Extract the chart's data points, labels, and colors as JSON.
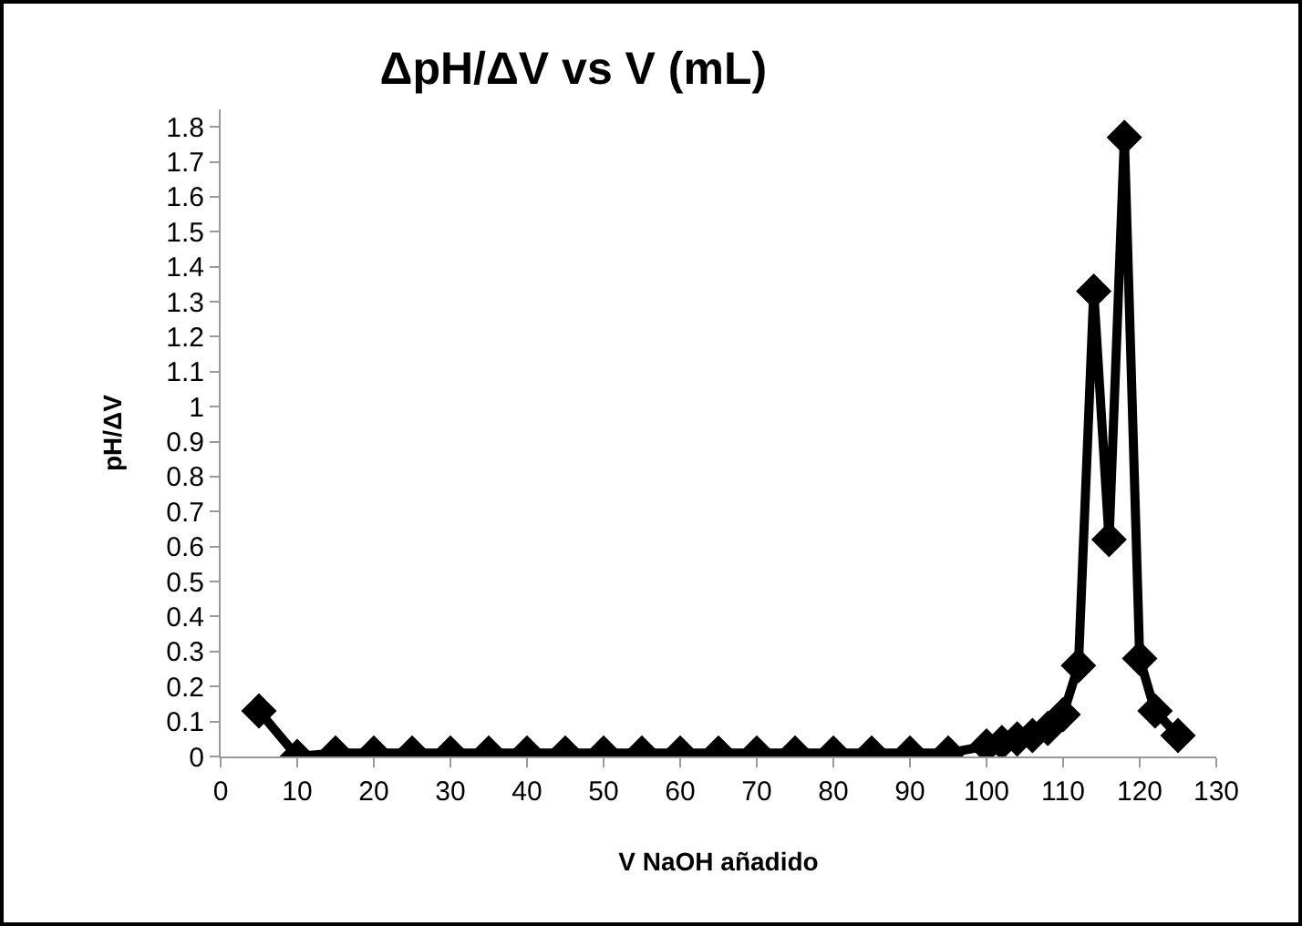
{
  "chart_data": {
    "type": "line",
    "title": "ΔpH/ΔV vs V (mL)",
    "xlabel": "V NaOH añadido",
    "ylabel": "pH/ΔV",
    "x": [
      5,
      10,
      15,
      20,
      25,
      30,
      35,
      40,
      45,
      50,
      55,
      60,
      65,
      70,
      75,
      80,
      85,
      90,
      95,
      100,
      102,
      104,
      106,
      108,
      110,
      112,
      114,
      116,
      118,
      120,
      122,
      125
    ],
    "series": [
      {
        "color": "#000000",
        "values": [
          0.13,
          0,
          0.01,
          0.01,
          0.01,
          0.01,
          0.01,
          0.01,
          0.01,
          0.01,
          0.01,
          0.01,
          0.01,
          0.01,
          0.01,
          0.01,
          0.01,
          0.01,
          0.01,
          0.03,
          0.04,
          0.05,
          0.06,
          0.08,
          0.12,
          0.26,
          1.33,
          0.62,
          1.77,
          0.28,
          0.13,
          0.06
        ]
      }
    ],
    "xlim": [
      0,
      130
    ],
    "xticks": [
      0,
      10,
      20,
      30,
      40,
      50,
      60,
      70,
      80,
      90,
      100,
      110,
      120,
      130
    ],
    "ylim": [
      0,
      1.85
    ],
    "yticks": [
      0,
      0.1,
      0.2,
      0.3,
      0.4,
      0.5,
      0.6,
      0.7,
      0.8,
      0.9,
      1,
      1.1,
      1.2,
      1.3,
      1.4,
      1.5,
      1.6,
      1.7,
      1.8
    ],
    "grid": false,
    "marker": "diamond",
    "line_style": "solid"
  }
}
